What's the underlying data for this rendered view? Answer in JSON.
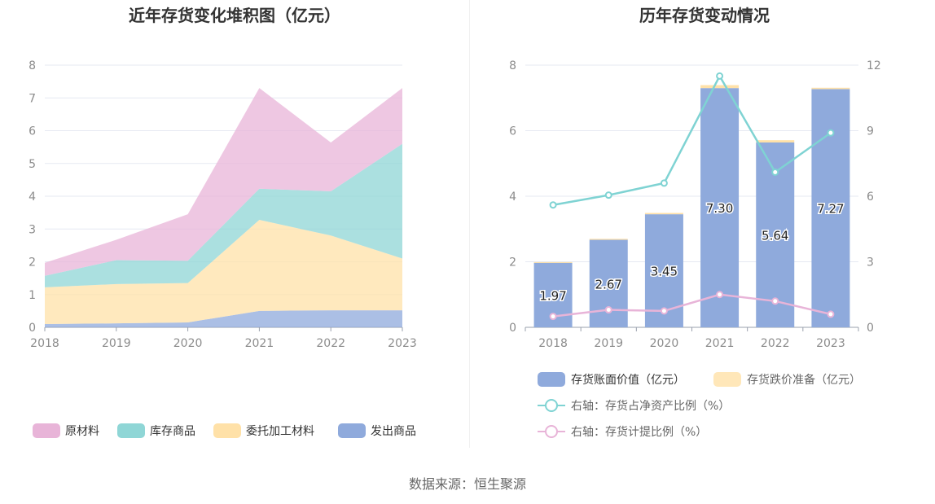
{
  "source_text": "数据来源：恒生聚源",
  "chart_data": [
    {
      "type": "area",
      "stacked": true,
      "title": "近年存货变化堆积图（亿元）",
      "categories": [
        "2018",
        "2019",
        "2020",
        "2021",
        "2022",
        "2023"
      ],
      "ylim": [
        0,
        8
      ],
      "yticks": [
        "0",
        "1",
        "2",
        "3",
        "4",
        "5",
        "6",
        "7",
        "8"
      ],
      "grid": true,
      "legend_position": "bottom",
      "series": [
        {
          "name": "发出商品",
          "color": "#8faadc",
          "values": [
            0.1,
            0.12,
            0.15,
            0.5,
            0.52,
            0.52
          ]
        },
        {
          "name": "委托加工材料",
          "color": "#ffe1a8",
          "values": [
            1.12,
            1.2,
            1.2,
            2.78,
            2.28,
            1.58
          ]
        },
        {
          "name": "库存商品",
          "color": "#8fd6d6",
          "values": [
            0.35,
            0.73,
            0.68,
            0.95,
            1.35,
            3.5
          ]
        },
        {
          "name": "原材料",
          "color": "#e8b4d8",
          "values": [
            0.4,
            0.62,
            1.42,
            3.07,
            1.49,
            1.7
          ]
        }
      ],
      "legend_order": [
        "原材料",
        "库存商品",
        "委托加工材料",
        "发出商品"
      ]
    },
    {
      "type": "bar",
      "title": "历年存货变动情况",
      "categories": [
        "2018",
        "2019",
        "2020",
        "2021",
        "2022",
        "2023"
      ],
      "ylim": [
        0,
        8
      ],
      "yticks": [
        "0",
        "2",
        "4",
        "6",
        "8"
      ],
      "y2lim": [
        0,
        12
      ],
      "y2ticks": [
        "0",
        "3",
        "6",
        "9",
        "12"
      ],
      "grid": true,
      "legend_position": "bottom",
      "bar_series": [
        {
          "name": "存货账面价值（亿元）",
          "color": "#8faadc",
          "values": [
            1.97,
            2.67,
            3.45,
            7.3,
            5.64,
            7.27
          ],
          "labels": [
            "1.97",
            "2.67",
            "3.45",
            "7.30",
            "5.64",
            "7.27"
          ]
        },
        {
          "name": "存货跌价准备（亿元）",
          "color": "#ffe1a8",
          "values": [
            0.02,
            0.03,
            0.04,
            0.09,
            0.07,
            0.04
          ]
        }
      ],
      "line_series": [
        {
          "name": "右轴：存货占净资产比例（%）",
          "color": "#7fd3d3",
          "axis": "right",
          "values": [
            5.6,
            6.05,
            6.6,
            11.5,
            7.1,
            8.9
          ]
        },
        {
          "name": "右轴：存货计提比例（%）",
          "color": "#e8b4d8",
          "axis": "right",
          "values": [
            0.5,
            0.8,
            0.75,
            1.5,
            1.2,
            0.6
          ]
        }
      ]
    }
  ]
}
